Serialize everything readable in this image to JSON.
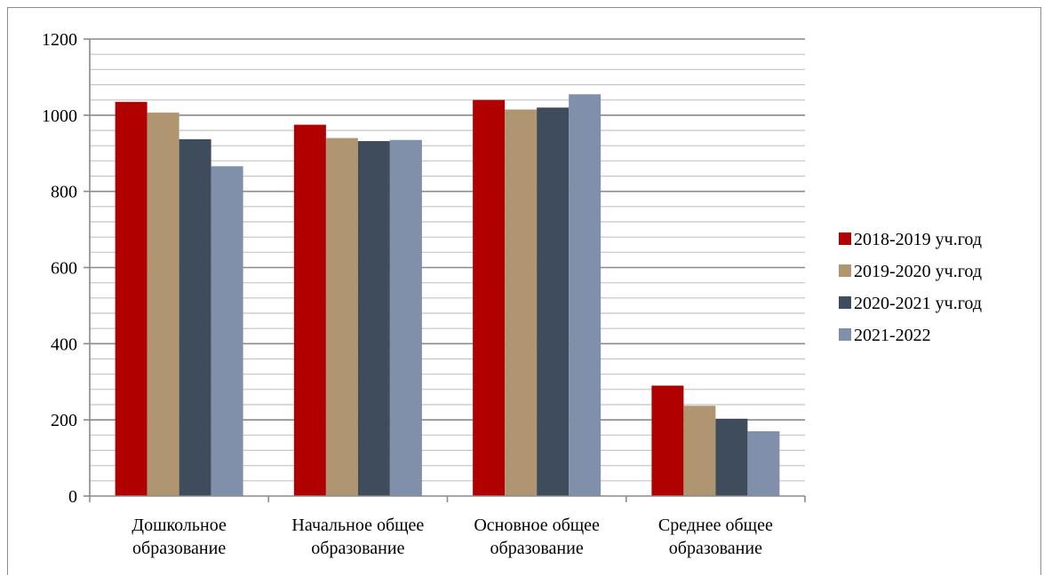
{
  "chart_data": {
    "type": "bar",
    "title": "",
    "xlabel": "",
    "ylabel": "",
    "ylim": [
      0,
      1200
    ],
    "yticks": [
      0,
      200,
      400,
      600,
      800,
      1000,
      1200
    ],
    "categories": [
      [
        "Дошкольное",
        "образование"
      ],
      [
        "Начальное общее",
        "образование"
      ],
      [
        "Основное общее",
        "образование"
      ],
      [
        "Среднее общее",
        "образование"
      ]
    ],
    "series": [
      {
        "name": "2018-2019 уч.год",
        "color": "#b00000",
        "values": [
          1035,
          975,
          1040,
          290
        ]
      },
      {
        "name": "2019-2020 уч.год",
        "color": "#b09670",
        "values": [
          1007,
          940,
          1015,
          237
        ]
      },
      {
        "name": "2020-2021 уч.год",
        "color": "#3f4c5c",
        "values": [
          937,
          932,
          1020,
          203
        ]
      },
      {
        "name": "2021-2022",
        "color": "#8090aa",
        "values": [
          866,
          935,
          1055,
          170
        ]
      }
    ],
    "grid": true,
    "legend_position": "right"
  }
}
